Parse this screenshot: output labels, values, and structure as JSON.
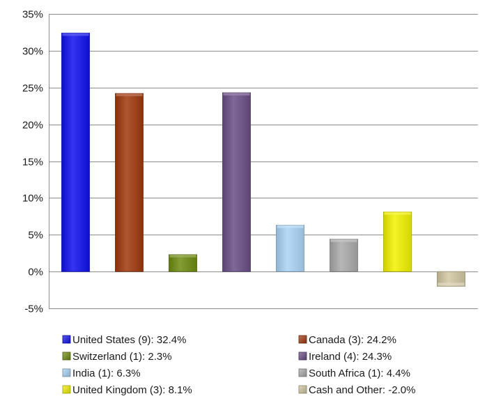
{
  "chart_data": {
    "type": "bar",
    "categories": [
      "United States (9)",
      "Canada (3)",
      "Switzerland (1)",
      "Ireland (4)",
      "India (1)",
      "South Africa (1)",
      "United Kingdom (3)",
      "Cash and Other"
    ],
    "values": [
      32.4,
      24.2,
      2.3,
      24.3,
      6.3,
      4.4,
      8.1,
      -2.0
    ],
    "colors": [
      "#1010ee",
      "#a0380c",
      "#6e8c10",
      "#6a4e86",
      "#aad4f6",
      "#aaaaaa",
      "#f2f200",
      "#d2c8a2"
    ],
    "legend_labels": [
      "United States (9): 32.4%",
      "Canada (3): 24.2%",
      "Switzerland (1): 2.3%",
      "Ireland (4): 24.3%",
      "India (1): 6.3%",
      "South Africa (1): 4.4%",
      "United Kingdom (3): 8.1%",
      "Cash and Other: -2.0%"
    ],
    "ylim": [
      -5,
      35
    ],
    "yticks": [
      35,
      30,
      25,
      20,
      15,
      10,
      5,
      0,
      -5
    ],
    "ytick_labels": [
      "35%",
      "30%",
      "25%",
      "20%",
      "15%",
      "10%",
      "5%",
      "0%",
      "-5%"
    ],
    "grid": true,
    "legend_position": "bottom, two columns",
    "title": "",
    "xlabel": "",
    "ylabel": ""
  }
}
